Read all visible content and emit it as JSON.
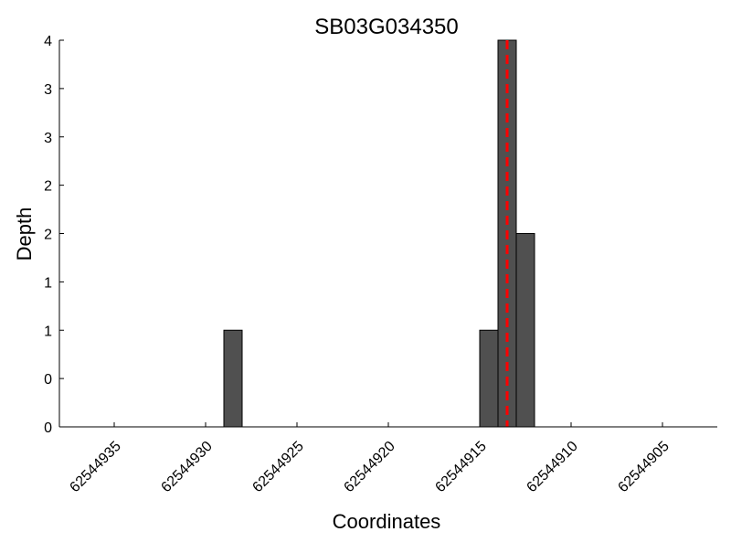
{
  "chart_data": {
    "type": "bar",
    "title": "SB03G034350",
    "xlabel": "Coordinates",
    "ylabel": "Depth",
    "x_reversed": true,
    "xlim": [
      62544938,
      62544902
    ],
    "ylim": [
      0,
      4
    ],
    "grid": false,
    "x_ticks": [
      62544935,
      62544930,
      62544925,
      62544920,
      62544915,
      62544910,
      62544905
    ],
    "x_tick_labels": [
      "62544935",
      "62544930",
      "62544925",
      "62544920",
      "62544915",
      "62544910",
      "62544905"
    ],
    "y_ticks": [
      0,
      0.5,
      1,
      1.5,
      2,
      2.5,
      3,
      3.5,
      4
    ],
    "y_tick_labels": [
      "0",
      "0",
      "1",
      "1",
      "2",
      "2",
      "3",
      "3",
      "4"
    ],
    "bars": [
      {
        "start": 62544929,
        "end": 62544928,
        "value": 1
      },
      {
        "start": 62544915,
        "end": 62544914,
        "value": 1
      },
      {
        "start": 62544914,
        "end": 62544913,
        "value": 4
      },
      {
        "start": 62544913,
        "end": 62544912,
        "value": 2
      }
    ],
    "bar_color": "#505050",
    "marker_line": {
      "x": 62544913.5,
      "color": "#ff0000",
      "style": "dashed"
    }
  }
}
